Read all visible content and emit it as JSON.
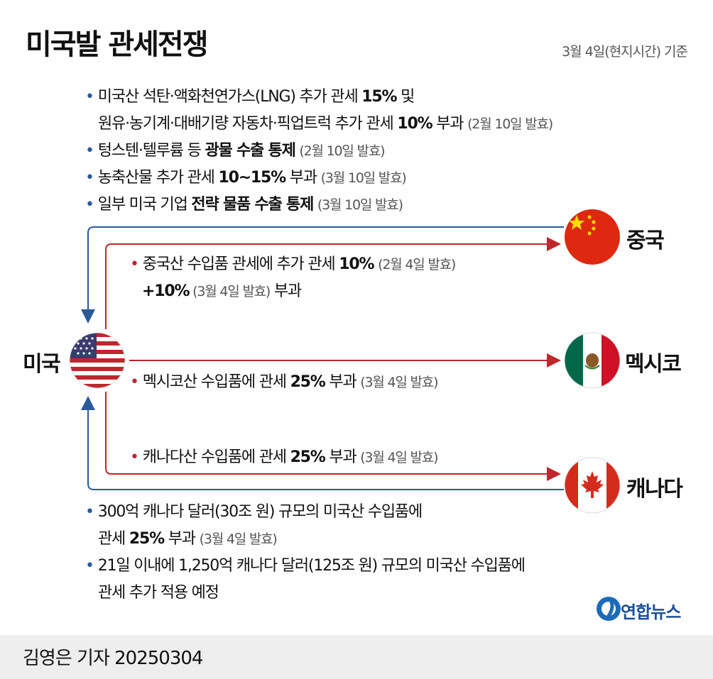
{
  "title": "미국발 관세전쟁",
  "date_note": "3월 4일(현지시간) 기준",
  "china_measures": [
    {
      "pre": "미국산 석탄·액화천연가스(LNG) 추가 관세 ",
      "bold": "15%",
      "post": " 및",
      "note": ""
    },
    {
      "pre": "원유·농기계·대배기량 자동차·픽업트럭 추가 관세 ",
      "bold": "10%",
      "post": " 부과 ",
      "note": "(2월 10일 발효)"
    },
    {
      "pre": "텅스텐·텔루륨 등 ",
      "bold": "광물 수출 통제",
      "post": " ",
      "note": "(2월 10일 발효)"
    },
    {
      "pre": "농축산물 추가 관세 ",
      "bold": "10~15%",
      "post": " 부과 ",
      "note": "(3월 10일 발효)"
    },
    {
      "pre": "일부 미국 기업 ",
      "bold": "전략 물품 수출 통제",
      "post": " ",
      "note": "(3월 10일 발효)"
    }
  ],
  "us_to_china": [
    {
      "pre": "중국산 수입품 관세에 추가 관세 ",
      "bold": "10%",
      "post": " ",
      "note": "(2월 4일 발효)"
    },
    {
      "pre": "",
      "bold": "+10%",
      "post": " 부과",
      "note": " (3월 4일 발효)"
    }
  ],
  "us_to_mexico": {
    "pre": "멕시코산 수입품에 관세 ",
    "bold": "25%",
    "post": " 부과 ",
    "note": "(3월 4일 발효)"
  },
  "us_to_canada": {
    "pre": "캐나다산 수입품에 관세 ",
    "bold": "25%",
    "post": " 부과 ",
    "note": "(3월 4일 발효)"
  },
  "canada_measures": [
    {
      "pre": "300억 캐나다 달러(30조 원) 규모의 미국산 수입품에",
      "bold": "",
      "post": "",
      "note": ""
    },
    {
      "pre": "관세 ",
      "bold": "25%",
      "post": " 부과 ",
      "note": "(3월 4일 발효)"
    },
    {
      "pre": "21일 이내에 1,250억 캐나다 달러(125조 원) 규모의 미국산 수입품에",
      "bold": "",
      "post": "",
      "note": ""
    },
    {
      "pre": "관세 추가 적용 예정",
      "bold": "",
      "post": "",
      "note": ""
    }
  ],
  "countries": {
    "us": "미국",
    "china": "중국",
    "mexico": "멕시코",
    "canada": "캐나다"
  },
  "logo": "연합뉴스",
  "reporter": "김영은 기자  20250304",
  "colors": {
    "us_arrow": "#c0262d",
    "retaliation_arrow": "#2a5a9a",
    "china_red": "#de2910",
    "china_star": "#ffde00",
    "mexico_green": "#006847",
    "canada_red": "#d52b1e",
    "us_blue": "#3c3b6e"
  }
}
